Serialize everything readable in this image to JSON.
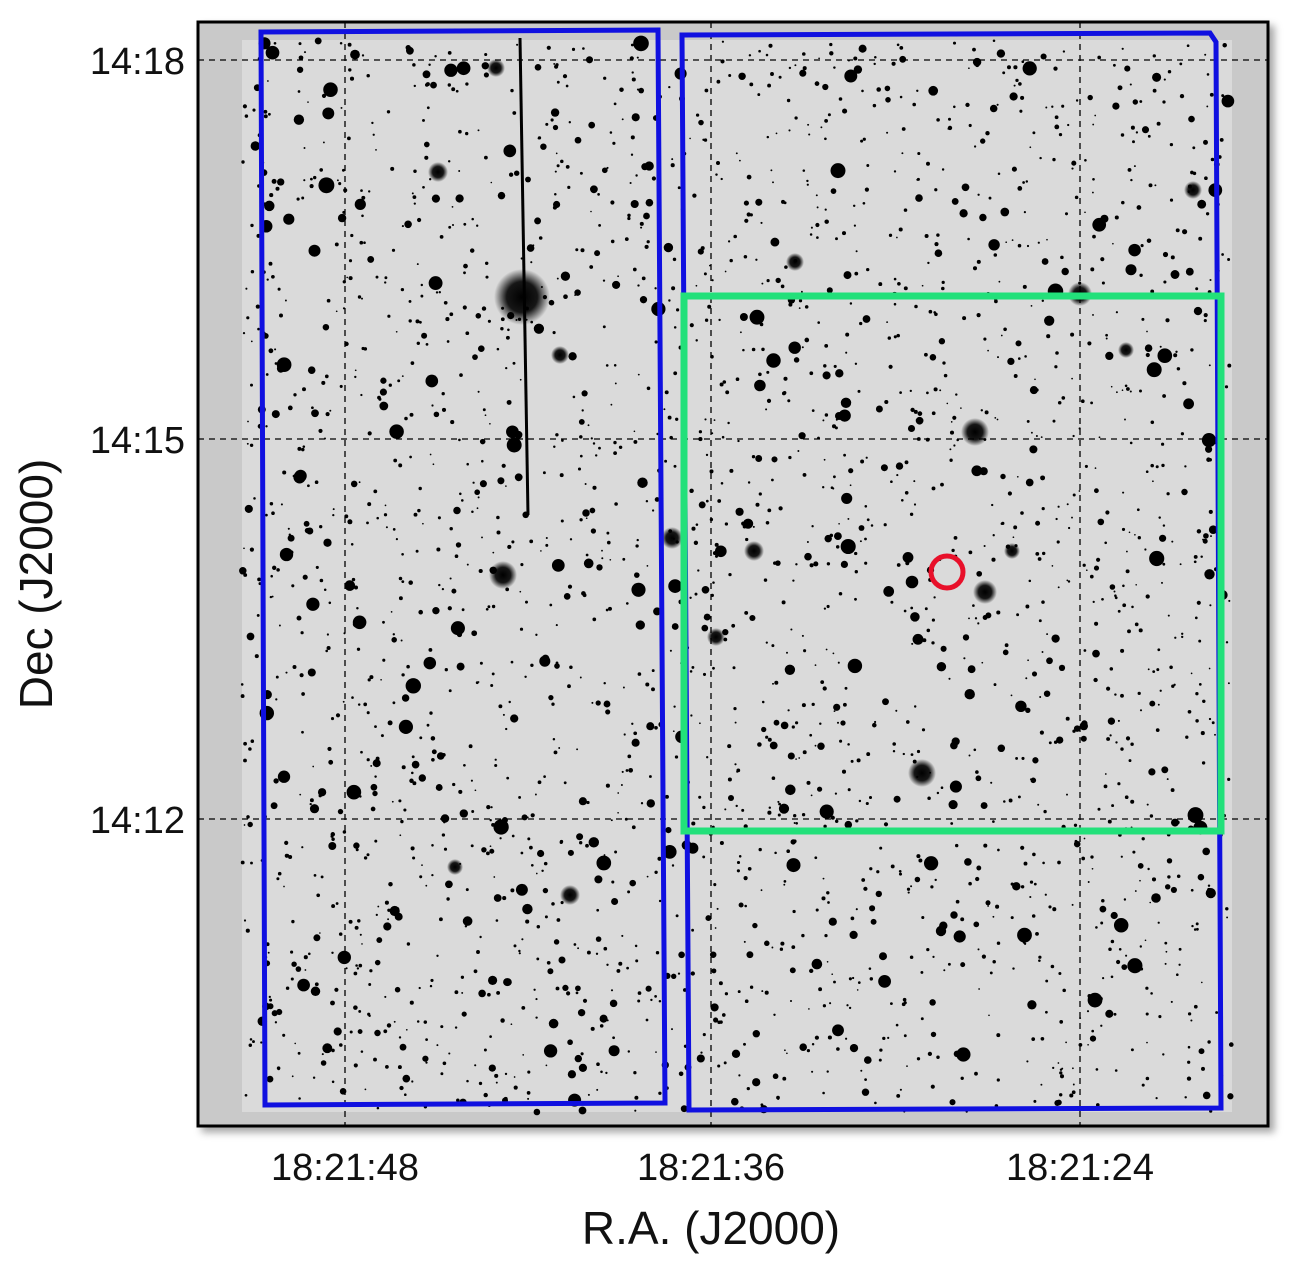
{
  "figure": {
    "x_axis": {
      "title": "R.A. (J2000)",
      "ticks": [
        "18:21:48",
        "18:21:36",
        "18:21:24"
      ]
    },
    "y_axis": {
      "title": "Dec (J2000)",
      "ticks": [
        "14:18",
        "14:15",
        "14:12"
      ]
    },
    "grid": "dashed",
    "overlays": [
      {
        "name": "left-field",
        "shape": "rectangle",
        "color": "#1010e0"
      },
      {
        "name": "right-field",
        "shape": "rectangle",
        "color": "#1010e0"
      },
      {
        "name": "inner-field",
        "shape": "rectangle",
        "color": "#22e07a"
      },
      {
        "name": "target-marker",
        "shape": "circle",
        "color": "#e8102a"
      }
    ],
    "colors": {
      "background_sky": "#d7d7d7",
      "stars": "#000000",
      "frame": "#000000"
    }
  }
}
